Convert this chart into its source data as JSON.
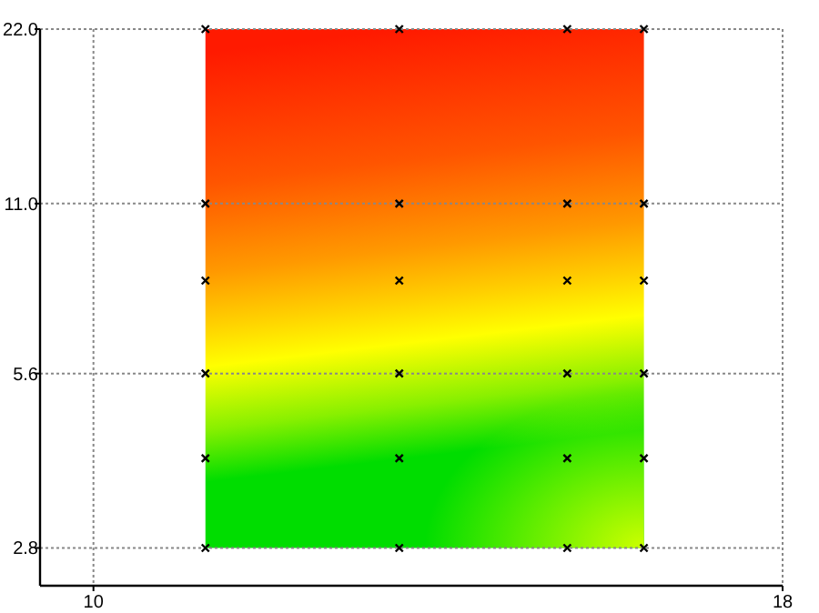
{
  "chart_data": {
    "type": "scatter",
    "log": "y",
    "grid": true,
    "marker": "cross",
    "xlim": [
      9.38,
      18
    ],
    "xticks": [
      10,
      18
    ],
    "ylim": [
      2.41,
      22
    ],
    "yticks": [
      {
        "value": 2.8,
        "label": "2.8"
      },
      {
        "value": 5.6,
        "label": "5.6"
      },
      {
        "value": 11,
        "label": "11.0"
      },
      {
        "value": 22,
        "label": "22.0"
      }
    ],
    "series": [
      {
        "color": "#000000",
        "x": [
          11.3,
          13.55,
          15.5,
          16.39,
          11.3,
          13.55,
          15.5,
          16.39,
          11.3,
          13.55,
          15.5,
          16.39,
          11.3,
          13.55,
          15.5,
          16.39,
          11.3,
          13.55,
          15.5,
          16.39,
          11.3,
          13.55,
          15.5,
          16.39
        ],
        "values": [
          22,
          22,
          22,
          22,
          11,
          11,
          11,
          11,
          8.1,
          8.1,
          8.1,
          8.1,
          5.6,
          5.6,
          5.6,
          5.6,
          4.0,
          4.0,
          4.0,
          4.0,
          2.8,
          2.8,
          2.8,
          2.8
        ]
      }
    ]
  }
}
